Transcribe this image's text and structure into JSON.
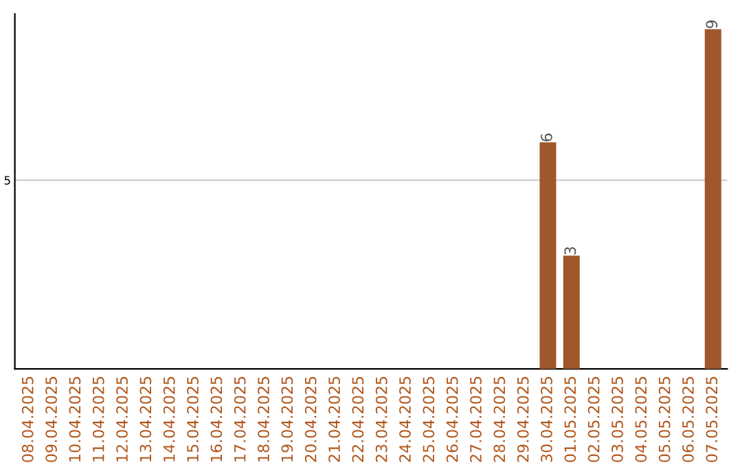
{
  "chart_data": {
    "type": "bar",
    "categories": [
      "08.04.2025",
      "09.04.2025",
      "10.04.2025",
      "11.04.2025",
      "12.04.2025",
      "13.04.2025",
      "14.04.2025",
      "15.04.2025",
      "16.04.2025",
      "17.04.2025",
      "18.04.2025",
      "19.04.2025",
      "20.04.2025",
      "21.04.2025",
      "22.04.2025",
      "23.04.2025",
      "24.04.2025",
      "25.04.2025",
      "26.04.2025",
      "27.04.2025",
      "28.04.2025",
      "29.04.2025",
      "30.04.2025",
      "01.05.2025",
      "02.05.2025",
      "03.05.2025",
      "04.05.2025",
      "05.05.2025",
      "06.05.2025",
      "07.05.2025"
    ],
    "values": [
      null,
      null,
      null,
      null,
      null,
      null,
      null,
      null,
      null,
      null,
      null,
      null,
      null,
      null,
      null,
      null,
      null,
      null,
      null,
      null,
      null,
      null,
      6,
      3,
      null,
      null,
      null,
      null,
      null,
      9
    ],
    "data_labels": true,
    "color": "#a0572b",
    "ylim": [
      0,
      9.4
    ],
    "yticks": [
      5
    ],
    "grid": "y"
  }
}
